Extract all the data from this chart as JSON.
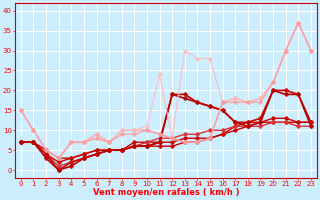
{
  "xlabel": "Vent moyen/en rafales ( km/h )",
  "xlim": [
    -0.5,
    23.5
  ],
  "ylim": [
    -2,
    42
  ],
  "yticks": [
    0,
    5,
    10,
    15,
    20,
    25,
    30,
    35,
    40
  ],
  "xticks": [
    0,
    1,
    2,
    3,
    4,
    5,
    6,
    7,
    8,
    9,
    10,
    11,
    12,
    13,
    14,
    15,
    16,
    17,
    18,
    19,
    20,
    21,
    22,
    23
  ],
  "bg_color": "#cceeff",
  "grid_color": "#ffffff",
  "lines": [
    {
      "x": [
        0,
        1,
        2,
        3,
        4,
        5,
        6,
        7,
        8,
        9,
        10,
        11,
        12,
        13,
        14,
        15,
        16,
        17,
        18,
        19,
        20,
        21,
        22,
        23
      ],
      "y": [
        7,
        7,
        5,
        3,
        3,
        4,
        5,
        5,
        5,
        6,
        6,
        6,
        6,
        7,
        7,
        8,
        9,
        10,
        11,
        12,
        12,
        12,
        12,
        12
      ],
      "color": "#cc0000",
      "linewidth": 1.0,
      "markersize": 2.5,
      "alpha": 1.0
    },
    {
      "x": [
        0,
        1,
        2,
        3,
        4,
        5,
        6,
        7,
        8,
        9,
        10,
        11,
        12,
        13,
        14,
        15,
        16,
        17,
        18,
        19,
        20,
        21,
        22,
        23
      ],
      "y": [
        7,
        7,
        4,
        2,
        3,
        4,
        5,
        5,
        5,
        7,
        7,
        7,
        7,
        8,
        8,
        8,
        9,
        11,
        12,
        12,
        13,
        13,
        12,
        12
      ],
      "color": "#cc0000",
      "linewidth": 1.0,
      "markersize": 2.5,
      "alpha": 1.0
    },
    {
      "x": [
        0,
        1,
        2,
        3,
        4,
        5,
        6,
        7,
        8,
        9,
        10,
        11,
        12,
        13,
        14,
        15,
        16,
        17,
        18,
        19,
        20,
        21,
        22,
        23
      ],
      "y": [
        7,
        7,
        4,
        1,
        2,
        3,
        4,
        5,
        5,
        6,
        7,
        8,
        8,
        9,
        9,
        10,
        10,
        11,
        11,
        11,
        12,
        12,
        11,
        11
      ],
      "color": "#dd3333",
      "linewidth": 1.0,
      "markersize": 2.5,
      "alpha": 1.0
    },
    {
      "x": [
        0,
        1,
        2,
        3,
        4,
        5,
        6,
        7,
        8,
        9,
        10,
        11,
        12,
        13,
        14,
        15,
        16,
        17,
        18,
        19,
        20,
        21,
        22,
        23
      ],
      "y": [
        7,
        7,
        4,
        0,
        2,
        3,
        4,
        5,
        5,
        6,
        6,
        7,
        19,
        19,
        17,
        16,
        15,
        12,
        12,
        13,
        20,
        20,
        19,
        12
      ],
      "color": "#cc0000",
      "linewidth": 1.2,
      "markersize": 2.5,
      "alpha": 1.0
    },
    {
      "x": [
        0,
        1,
        2,
        3,
        4,
        5,
        6,
        7,
        8,
        9,
        10,
        11,
        12,
        13,
        14,
        15,
        16,
        17,
        18,
        19,
        20,
        21,
        22,
        23
      ],
      "y": [
        7,
        7,
        3,
        0,
        1,
        3,
        4,
        5,
        5,
        6,
        6,
        7,
        19,
        18,
        17,
        16,
        15,
        12,
        11,
        12,
        20,
        19,
        19,
        11
      ],
      "color": "#bb0000",
      "linewidth": 1.2,
      "markersize": 2.5,
      "alpha": 1.0
    },
    {
      "x": [
        0,
        1,
        2,
        3,
        4,
        5,
        6,
        7,
        8,
        9,
        10,
        11,
        12,
        13,
        14,
        15,
        16,
        17,
        18,
        19,
        20,
        21,
        22,
        23
      ],
      "y": [
        15,
        10,
        5,
        3,
        7,
        7,
        9,
        7,
        10,
        10,
        10,
        9,
        8,
        7,
        7,
        8,
        17,
        18,
        17,
        18,
        22,
        30,
        37,
        30
      ],
      "color": "#ffaaaa",
      "linewidth": 1.0,
      "markersize": 2.5,
      "alpha": 1.0
    },
    {
      "x": [
        0,
        1,
        2,
        3,
        4,
        5,
        6,
        7,
        8,
        9,
        10,
        11,
        12,
        13,
        14,
        15,
        16,
        17,
        18,
        19,
        20,
        21,
        22,
        23
      ],
      "y": [
        15,
        10,
        5,
        3,
        7,
        7,
        8,
        7,
        10,
        10,
        11,
        24,
        8,
        30,
        28,
        28,
        17,
        18,
        17,
        18,
        22,
        30,
        37,
        30
      ],
      "color": "#ffbbbb",
      "linewidth": 1.0,
      "markersize": 2.5,
      "alpha": 0.8
    },
    {
      "x": [
        0,
        1,
        2,
        3,
        4,
        5,
        6,
        7,
        8,
        9,
        10,
        11,
        12,
        13,
        14,
        15,
        16,
        17,
        18,
        19,
        20,
        21,
        22,
        23
      ],
      "y": [
        15,
        10,
        5,
        3,
        7,
        7,
        8,
        7,
        9,
        9,
        10,
        9,
        8,
        7,
        7,
        8,
        17,
        17,
        17,
        17,
        22,
        30,
        37,
        30
      ],
      "color": "#ff9999",
      "linewidth": 1.0,
      "markersize": 2.5,
      "alpha": 0.8
    }
  ]
}
